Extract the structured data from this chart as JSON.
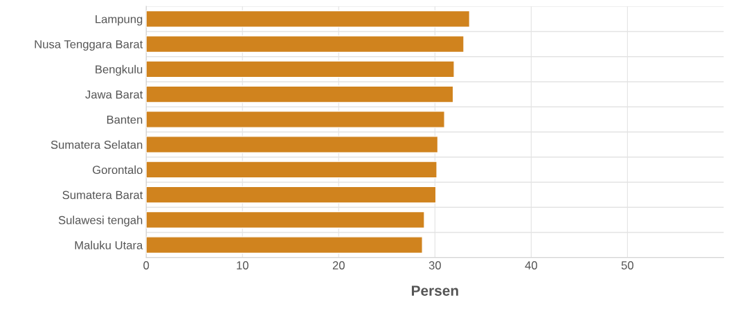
{
  "chart_data": {
    "type": "bar",
    "orientation": "horizontal",
    "xlabel": "Persen",
    "categories": [
      "Lampung",
      "Nusa Tenggara Barat",
      "Bengkulu",
      "Jawa Barat",
      "Banten",
      "Sumatera Selatan",
      "Gorontalo",
      "Sumatera Barat",
      "Sulawesi tengah",
      "Maluku Utara"
    ],
    "values": [
      33.6,
      33.0,
      32.0,
      31.9,
      31.0,
      30.3,
      30.2,
      30.1,
      28.9,
      28.7
    ],
    "color": "#d0831e",
    "xlim": [
      0,
      60
    ],
    "xticks": [
      0,
      10,
      20,
      30,
      40,
      50
    ],
    "grid": true
  }
}
